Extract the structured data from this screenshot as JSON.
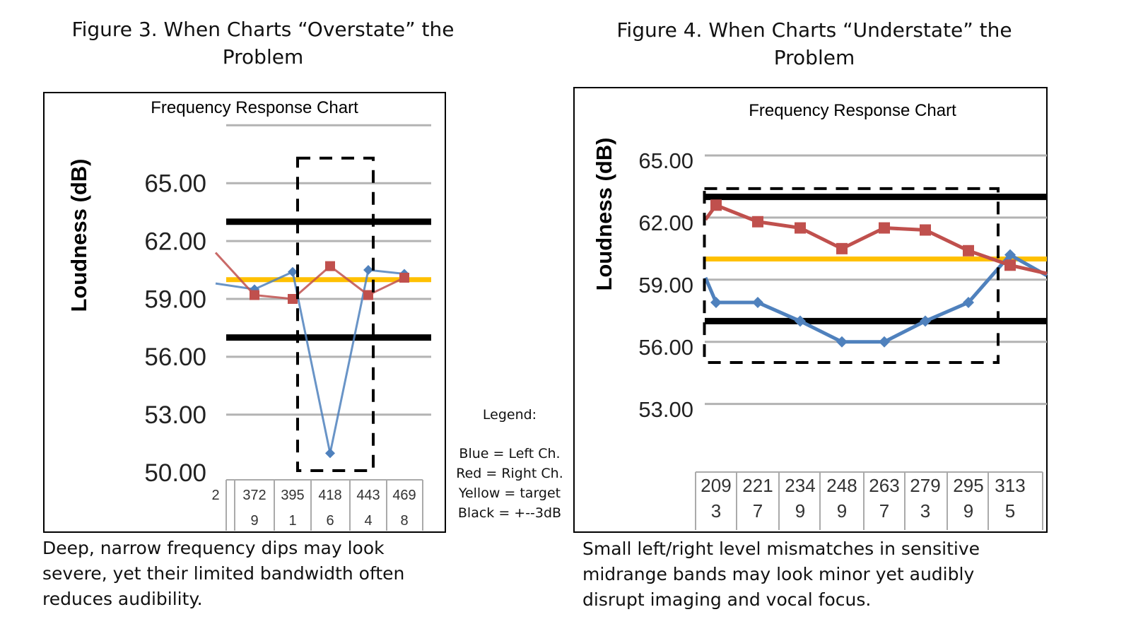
{
  "figure3": {
    "title_line1": "Figure 3. When Charts “Overstate” the",
    "title_line2": "Problem",
    "caption": [
      "Deep, narrow frequency dips may look",
      "severe, yet their limited bandwidth often",
      "reduces audibility."
    ]
  },
  "figure4": {
    "title_line1": "Figure 4. When Charts “Understate” the",
    "title_line2": "Problem",
    "caption": [
      "Small left/right level mismatches in sensitive",
      "midrange bands may look minor yet audibly",
      "disrupt imaging and vocal focus."
    ]
  },
  "legend": {
    "heading": "Legend:",
    "items": [
      "Blue = Left Ch.",
      "Red = Right Ch.",
      "Yellow = target",
      "Black = +--3dB"
    ]
  },
  "colors": {
    "left": "#4f81bd",
    "right": "#c0504d",
    "target": "#ffc000",
    "limits": "#000000",
    "grid": "#b3b3b3"
  },
  "chart_data": [
    {
      "type": "line",
      "title": "Frequency Response Chart",
      "ylabel": "Loudness (dB)",
      "xlabel": "",
      "ylim": [
        50,
        68
      ],
      "yticks": [
        "65.00",
        "62.00",
        "59.00",
        "56.00",
        "53.00",
        "50.00"
      ],
      "categories": [
        [
          "2",
          ""
        ],
        [
          "372",
          "9"
        ],
        [
          "395",
          "1"
        ],
        [
          "418",
          "6"
        ],
        [
          "443",
          "4"
        ],
        [
          "469",
          "8"
        ]
      ],
      "grid": true,
      "series": [
        {
          "color": "#4f81bd",
          "marker": "diamond",
          "values": [
            59.8,
            59.5,
            60.4,
            51.0,
            60.5,
            60.3
          ]
        },
        {
          "color": "#c0504d",
          "marker": "square",
          "values": [
            61.4,
            59.2,
            59.0,
            60.7,
            59.2,
            60.1
          ]
        }
      ],
      "reference_lines": [
        {
          "color": "#ffc000",
          "value": 60
        },
        {
          "color": "#000000",
          "value": 63
        },
        {
          "color": "#000000",
          "value": 57
        }
      ],
      "highlight_box": {
        "from_category": "395 1",
        "to_category": "443 4",
        "ymin": 50.1,
        "ymax": 66.3
      }
    },
    {
      "type": "line",
      "title": "Frequency Response Chart",
      "ylabel": "Loudness (dB)",
      "xlabel": "",
      "ylim": [
        53,
        65
      ],
      "yticks": [
        "65.00",
        "62.00",
        "59.00",
        "56.00",
        "53.00"
      ],
      "categories": [
        [
          "209",
          "3"
        ],
        [
          "221",
          "7"
        ],
        [
          "234",
          "9"
        ],
        [
          "248",
          "9"
        ],
        [
          "263",
          "7"
        ],
        [
          "279",
          "3"
        ],
        [
          "295",
          "9"
        ],
        [
          "313",
          "5"
        ]
      ],
      "grid": true,
      "series": [
        {
          "color": "#4f81bd",
          "marker": "diamond",
          "lead_in": 59.1,
          "values": [
            57.9,
            57.9,
            57.0,
            56.0,
            56.0,
            57.0,
            57.9,
            60.2
          ],
          "lead_out": 59.2
        },
        {
          "color": "#c0504d",
          "marker": "square",
          "lead_in": 61.9,
          "values": [
            62.6,
            61.8,
            61.5,
            60.5,
            61.5,
            61.4,
            60.4,
            59.7
          ],
          "lead_out": 59.3
        }
      ],
      "reference_lines": [
        {
          "color": "#ffc000",
          "value": 60
        },
        {
          "color": "#000000",
          "value": 63
        },
        {
          "color": "#000000",
          "value": 57
        }
      ],
      "highlight_box": {
        "from_category": "209 3",
        "to_category": "313 5",
        "ymin": 55.0,
        "ymax": 63.4
      }
    }
  ]
}
